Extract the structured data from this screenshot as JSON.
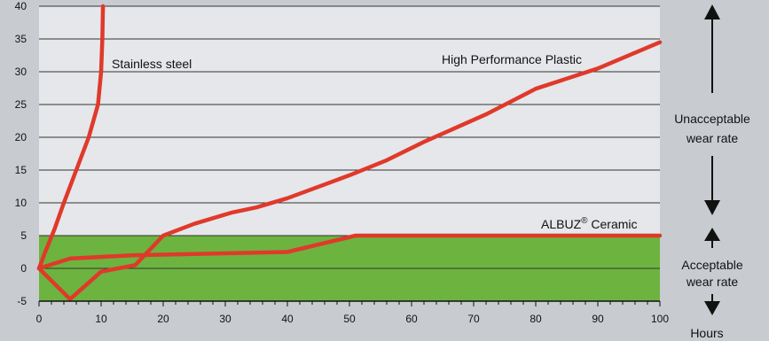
{
  "chart_data": {
    "type": "line",
    "xlabel": "Hours",
    "ylabel": "",
    "xlim": [
      0,
      100
    ],
    "ylim": [
      -5,
      40
    ],
    "x_ticks": [
      0,
      10,
      20,
      30,
      40,
      50,
      60,
      70,
      80,
      90,
      100
    ],
    "y_ticks": [
      -5,
      0,
      5,
      10,
      15,
      20,
      25,
      30,
      35,
      40
    ],
    "acceptable_band": [
      -5,
      5
    ],
    "colors": {
      "series": "#e0392b",
      "acceptable": "#6db33f",
      "unacceptable": "#e5e7ea",
      "outer": "#c8ccd1",
      "grid": "#333333"
    },
    "series": [
      {
        "name": "Stainless steel",
        "points": [
          [
            0,
            0
          ],
          [
            1,
            2.5
          ],
          [
            2.5,
            6
          ],
          [
            4,
            10
          ],
          [
            6,
            15
          ],
          [
            8,
            20
          ],
          [
            9.5,
            25
          ],
          [
            10,
            30
          ],
          [
            10.2,
            35
          ],
          [
            10.3,
            40
          ]
        ]
      },
      {
        "name": "High Performance Plastic",
        "points": [
          [
            0,
            0
          ],
          [
            5,
            -4.7
          ],
          [
            10,
            -0.5
          ],
          [
            15.5,
            0.5
          ],
          [
            20,
            5
          ],
          [
            25,
            6.8
          ],
          [
            31,
            8.5
          ],
          [
            35,
            9.3
          ],
          [
            40,
            10.7
          ],
          [
            50,
            14.2
          ],
          [
            56,
            16.5
          ],
          [
            62,
            19.3
          ],
          [
            72,
            23.5
          ],
          [
            80,
            27.4
          ],
          [
            90,
            30.5
          ],
          [
            100,
            34.5
          ]
        ]
      },
      {
        "name": "ALBUZ® Ceramic",
        "name_base": "ALBUZ",
        "name_sup": "®",
        "name_rest": " Ceramic",
        "points": [
          [
            0,
            0
          ],
          [
            5,
            1.5
          ],
          [
            15,
            2
          ],
          [
            40,
            2.5
          ],
          [
            51,
            5
          ],
          [
            100,
            5
          ]
        ]
      }
    ],
    "annotations": {
      "unacceptable": [
        "Unacceptable",
        "wear rate"
      ],
      "acceptable": [
        "Acceptable",
        "wear rate"
      ]
    }
  }
}
